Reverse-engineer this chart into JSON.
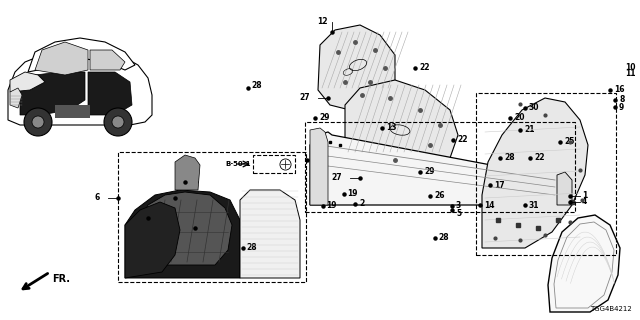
{
  "bg": "#ffffff",
  "lc": "#000000",
  "tc": "#000000",
  "diagram_code": "TGG4B4212",
  "b50_label": "B-50-1",
  "figsize": [
    6.4,
    3.2
  ],
  "dpi": 100
}
